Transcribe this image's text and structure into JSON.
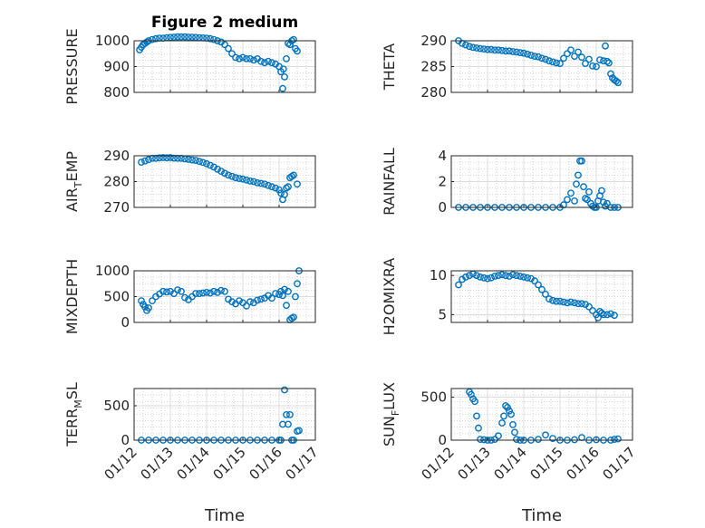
{
  "figure": {
    "title": "Figure 2 medium",
    "xlabel": "Time"
  },
  "colors": {
    "marker": "#0072BD",
    "axes": "#262626"
  },
  "x_tick_labels": [
    "01/12",
    "01/13",
    "01/14",
    "01/15",
    "01/16",
    "01/17"
  ],
  "chart_data": [
    {
      "type": "scatter",
      "ylabel": "PRESSURE",
      "ylim": [
        800,
        1000
      ],
      "yticks": [
        800,
        900,
        1000
      ],
      "grid": true,
      "x": [
        12.15,
        12.2,
        12.25,
        12.3,
        12.35,
        12.4,
        12.5,
        12.6,
        12.7,
        12.8,
        12.9,
        13.0,
        13.1,
        13.2,
        13.3,
        13.4,
        13.5,
        13.6,
        13.7,
        13.8,
        13.9,
        14.0,
        14.1,
        14.2,
        14.3,
        14.4,
        14.5,
        14.6,
        14.7,
        14.8,
        14.9,
        15.0,
        15.1,
        15.2,
        15.3,
        15.4,
        15.5,
        15.6,
        15.7,
        15.8,
        15.9,
        16.0,
        16.05,
        16.1,
        16.12,
        16.15,
        16.2,
        16.25,
        16.3,
        16.35,
        16.4,
        16.45,
        16.5
      ],
      "y": [
        965,
        975,
        985,
        990,
        995,
        1000,
        1005,
        1008,
        1010,
        1010,
        1012,
        1013,
        1014,
        1015,
        1015,
        1015,
        1014,
        1014,
        1013,
        1012,
        1011,
        1010,
        1008,
        1005,
        1000,
        995,
        985,
        970,
        950,
        935,
        930,
        935,
        930,
        930,
        925,
        930,
        920,
        915,
        920,
        915,
        910,
        900,
        880,
        815,
        890,
        860,
        930,
        990,
        985,
        1000,
        1005,
        970,
        960
      ]
    },
    {
      "type": "scatter",
      "ylabel": "THETA",
      "ylim": [
        280,
        290
      ],
      "yticks": [
        280,
        285,
        290
      ],
      "grid": true,
      "x": [
        12.2,
        12.3,
        12.4,
        12.5,
        12.6,
        12.7,
        12.8,
        12.9,
        13.0,
        13.1,
        13.2,
        13.3,
        13.4,
        13.5,
        13.6,
        13.7,
        13.8,
        13.9,
        14.0,
        14.1,
        14.2,
        14.3,
        14.4,
        14.5,
        14.6,
        14.7,
        14.8,
        14.9,
        15.0,
        15.1,
        15.2,
        15.3,
        15.4,
        15.5,
        15.6,
        15.7,
        15.8,
        15.9,
        16.0,
        16.1,
        16.2,
        16.25,
        16.3,
        16.35,
        16.4,
        16.45,
        16.5,
        16.55,
        16.6
      ],
      "y": [
        290,
        289.5,
        289.2,
        288.9,
        288.7,
        288.6,
        288.5,
        288.4,
        288.3,
        288.3,
        288.2,
        288.2,
        288.1,
        288.0,
        288.0,
        287.9,
        287.8,
        287.7,
        287.6,
        287.4,
        287.2,
        287.0,
        286.9,
        286.6,
        286.4,
        286.1,
        285.9,
        285.7,
        285.6,
        286.6,
        287.5,
        288.2,
        287.0,
        287.8,
        286.8,
        285.6,
        286.4,
        285.1,
        285.0,
        286.3,
        286.1,
        289.0,
        286.0,
        285.7,
        283.6,
        282.8,
        282.4,
        282.2,
        281.9
      ]
    },
    {
      "type": "scatter",
      "ylabel": "AIR_TEMP",
      "ylim": [
        270,
        290
      ],
      "yticks": [
        270,
        280,
        290
      ],
      "grid": true,
      "x": [
        12.2,
        12.3,
        12.4,
        12.5,
        12.6,
        12.7,
        12.8,
        12.9,
        13.0,
        13.1,
        13.2,
        13.3,
        13.4,
        13.5,
        13.6,
        13.7,
        13.8,
        13.9,
        14.0,
        14.1,
        14.2,
        14.3,
        14.4,
        14.5,
        14.6,
        14.7,
        14.8,
        14.9,
        15.0,
        15.1,
        15.2,
        15.3,
        15.4,
        15.5,
        15.6,
        15.7,
        15.8,
        15.9,
        16.0,
        16.05,
        16.1,
        16.15,
        16.2,
        16.25,
        16.3,
        16.35,
        16.4,
        16.5
      ],
      "y": [
        287.5,
        288,
        288.5,
        289,
        289,
        289.2,
        289.3,
        289.2,
        289.3,
        289.1,
        289.0,
        289.0,
        288.8,
        288.6,
        288.4,
        288.2,
        287.8,
        287.4,
        286.9,
        286.3,
        285.6,
        284.8,
        284.0,
        283.2,
        282.5,
        282.0,
        281.5,
        281.2,
        281.0,
        280.6,
        280.2,
        280.0,
        279.5,
        279.3,
        279.0,
        278.5,
        278.0,
        277.5,
        276.8,
        275.5,
        273.0,
        275.0,
        277.5,
        278.0,
        281.5,
        282.0,
        282.5,
        279.0
      ]
    },
    {
      "type": "scatter",
      "ylabel": "RAINFALL",
      "ylim": [
        0,
        4
      ],
      "yticks": [
        0,
        2,
        4
      ],
      "grid": true,
      "x": [
        12.2,
        12.4,
        12.6,
        12.8,
        13.0,
        13.2,
        13.4,
        13.6,
        13.8,
        14.0,
        14.2,
        14.4,
        14.6,
        14.8,
        15.0,
        15.1,
        15.2,
        15.3,
        15.4,
        15.45,
        15.5,
        15.55,
        15.6,
        15.65,
        15.7,
        15.75,
        15.8,
        15.85,
        15.9,
        15.95,
        16.0,
        16.05,
        16.1,
        16.15,
        16.2,
        16.25,
        16.3,
        16.4,
        16.5,
        16.6
      ],
      "y": [
        0,
        0,
        0,
        0,
        0,
        0,
        0,
        0,
        0,
        0,
        0,
        0,
        0,
        0,
        0,
        0.2,
        0.6,
        1.1,
        0.5,
        1.8,
        2.5,
        3.6,
        3.6,
        1.6,
        0.7,
        0.6,
        1.2,
        0.3,
        0.1,
        0.0,
        0.0,
        0.5,
        0.9,
        1.3,
        0.4,
        0.1,
        0.3,
        0,
        0,
        0
      ]
    },
    {
      "type": "scatter",
      "ylabel": "MIXDEPTH",
      "ylim": [
        0,
        1000
      ],
      "yticks": [
        0,
        500,
        1000
      ],
      "grid": true,
      "x": [
        12.2,
        12.25,
        12.3,
        12.35,
        12.4,
        12.5,
        12.6,
        12.7,
        12.8,
        12.9,
        13.0,
        13.1,
        13.2,
        13.3,
        13.4,
        13.5,
        13.6,
        13.7,
        13.8,
        13.9,
        14.0,
        14.1,
        14.2,
        14.3,
        14.4,
        14.5,
        14.6,
        14.7,
        14.8,
        14.9,
        15.0,
        15.1,
        15.2,
        15.3,
        15.4,
        15.5,
        15.6,
        15.7,
        15.8,
        15.9,
        16.0,
        16.05,
        16.1,
        16.15,
        16.2,
        16.25,
        16.3,
        16.35,
        16.4,
        16.45,
        16.5,
        16.55
      ],
      "y": [
        420,
        350,
        300,
        230,
        280,
        420,
        500,
        550,
        600,
        590,
        600,
        560,
        630,
        600,
        480,
        440,
        500,
        560,
        560,
        570,
        580,
        570,
        600,
        580,
        620,
        600,
        450,
        400,
        360,
        420,
        380,
        320,
        400,
        380,
        430,
        450,
        470,
        520,
        470,
        560,
        540,
        600,
        520,
        640,
        330,
        600,
        50,
        80,
        100,
        500,
        750,
        1000
      ]
    },
    {
      "type": "scatter",
      "ylabel": "H2OMIXRA",
      "ylim": [
        4,
        10.6
      ],
      "yticks": [
        5,
        10
      ],
      "grid": true,
      "x": [
        12.2,
        12.3,
        12.4,
        12.5,
        12.6,
        12.7,
        12.8,
        12.9,
        13.0,
        13.1,
        13.2,
        13.3,
        13.4,
        13.5,
        13.6,
        13.7,
        13.8,
        13.9,
        14.0,
        14.1,
        14.2,
        14.3,
        14.4,
        14.5,
        14.6,
        14.7,
        14.8,
        14.9,
        15.0,
        15.1,
        15.2,
        15.3,
        15.4,
        15.5,
        15.6,
        15.7,
        15.8,
        15.9,
        16.0,
        16.05,
        16.1,
        16.15,
        16.2,
        16.3,
        16.4,
        16.5
      ],
      "y": [
        8.8,
        9.5,
        9.8,
        10,
        10.2,
        10.0,
        9.8,
        9.7,
        9.6,
        9.7,
        9.9,
        10.0,
        10.1,
        10.0,
        9.9,
        10.1,
        10.0,
        9.9,
        9.8,
        9.7,
        9.6,
        9.3,
        8.8,
        8.2,
        7.6,
        7.0,
        6.8,
        6.7,
        6.7,
        6.6,
        6.5,
        6.6,
        6.5,
        6.4,
        6.4,
        6.3,
        6.0,
        5.5,
        5.0,
        4.6,
        5.4,
        5.2,
        5.0,
        5.0,
        5.1,
        4.9
      ]
    },
    {
      "type": "scatter",
      "ylabel": "TERR_MSL",
      "ylim": [
        0,
        750
      ],
      "yticks": [
        0,
        500
      ],
      "grid": true,
      "x": [
        12.2,
        12.4,
        12.6,
        12.8,
        13.0,
        13.2,
        13.4,
        13.6,
        13.8,
        14.0,
        14.2,
        14.4,
        14.6,
        14.8,
        15.0,
        15.2,
        15.4,
        15.6,
        15.8,
        16.0,
        16.05,
        16.1,
        16.15,
        16.2,
        16.25,
        16.3,
        16.35,
        16.4,
        16.5,
        16.55
      ],
      "y": [
        0,
        0,
        0,
        0,
        0,
        0,
        0,
        0,
        0,
        0,
        0,
        0,
        0,
        0,
        0,
        0,
        0,
        0,
        0,
        0,
        0,
        230,
        730,
        370,
        230,
        370,
        0,
        0,
        130,
        140
      ]
    },
    {
      "type": "scatter",
      "ylabel": "SUN_FLUX",
      "ylim": [
        0,
        600
      ],
      "yticks": [
        0,
        500
      ],
      "grid": true,
      "x": [
        12.5,
        12.55,
        12.6,
        12.65,
        12.7,
        12.75,
        12.8,
        12.9,
        13.0,
        13.1,
        13.2,
        13.3,
        13.4,
        13.45,
        13.5,
        13.55,
        13.6,
        13.65,
        13.7,
        13.75,
        13.8,
        13.9,
        14.0,
        14.2,
        14.4,
        14.6,
        14.8,
        15.0,
        15.2,
        15.4,
        15.6,
        15.8,
        16.0,
        16.2,
        16.4,
        16.5,
        16.6
      ],
      "y": [
        560,
        530,
        480,
        450,
        280,
        140,
        10,
        5,
        0,
        0,
        10,
        50,
        200,
        280,
        400,
        380,
        340,
        300,
        180,
        90,
        10,
        0,
        0,
        0,
        10,
        60,
        20,
        0,
        0,
        5,
        30,
        0,
        5,
        0,
        0,
        10,
        15
      ]
    }
  ]
}
